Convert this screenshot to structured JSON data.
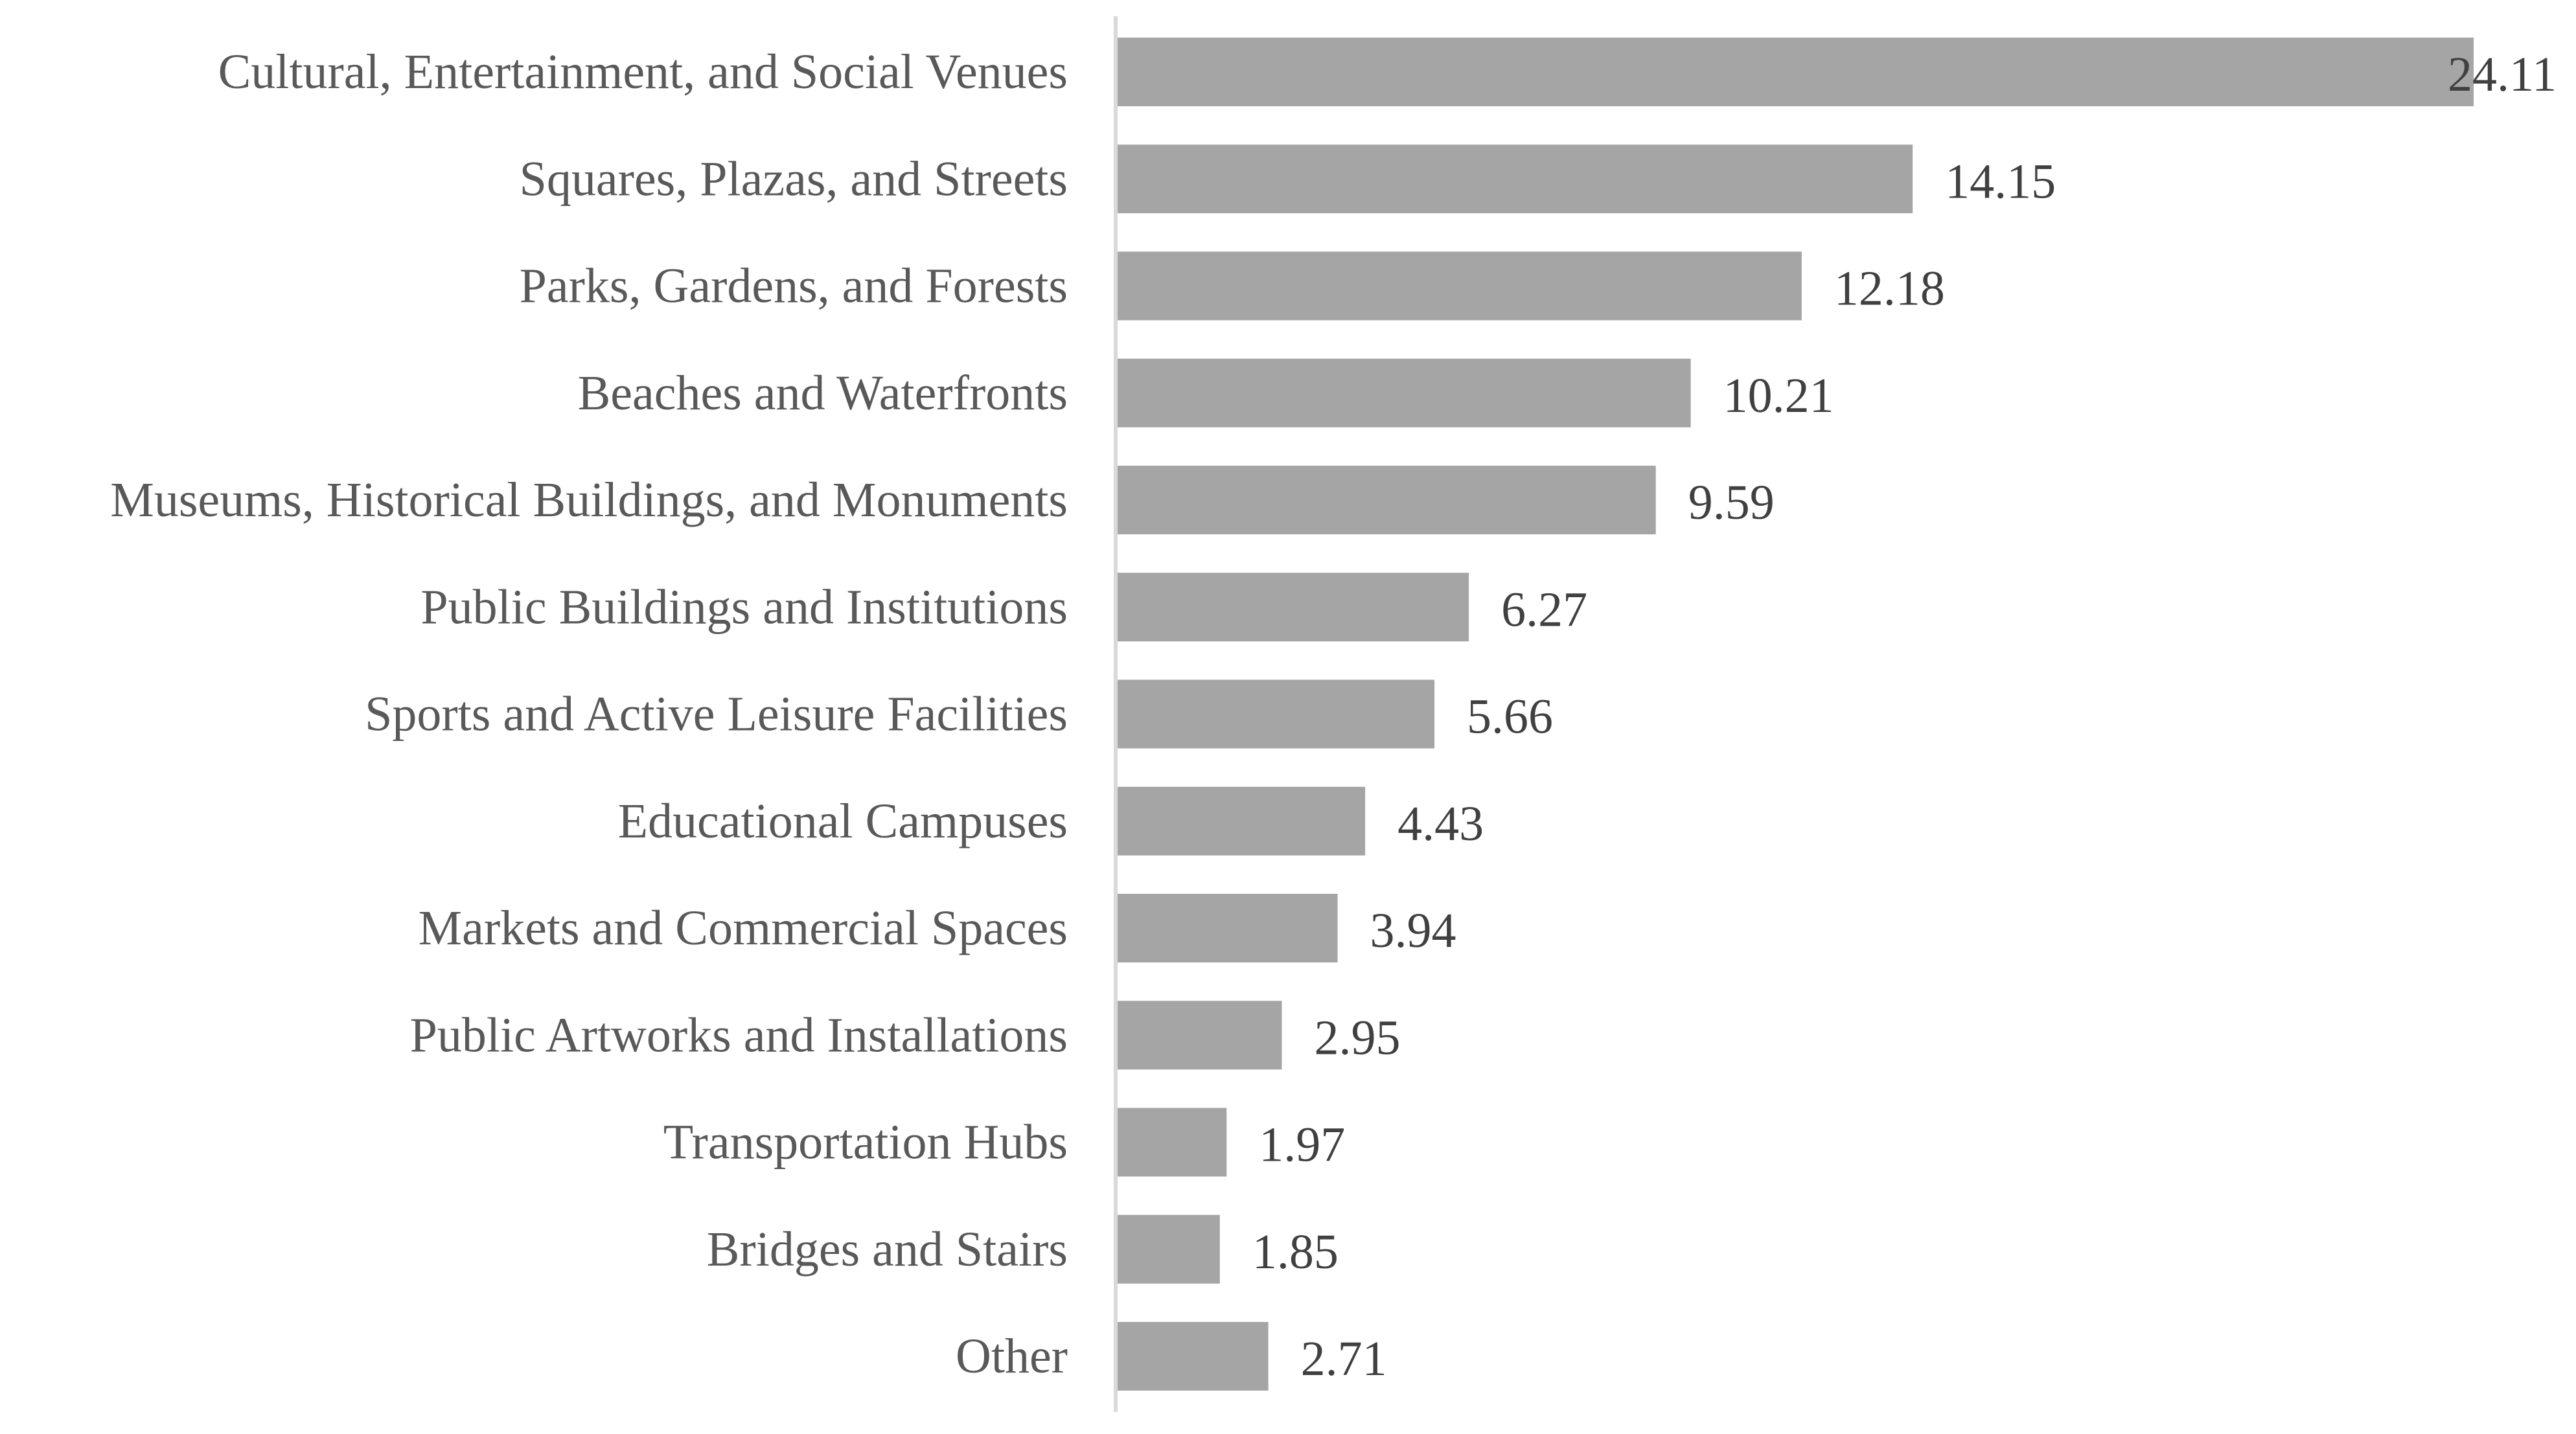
{
  "chart_data": {
    "type": "bar",
    "orientation": "horizontal",
    "title": "",
    "xlabel": "",
    "ylabel": "",
    "xlim": [
      0,
      24.11
    ],
    "grid": false,
    "legend": "none",
    "categories": [
      "Cultural, Entertainment, and Social Venues",
      "Squares, Plazas, and Streets",
      "Parks, Gardens, and Forests",
      "Beaches and Waterfronts",
      "Museums, Historical Buildings, and Monuments",
      "Public Buildings and Institutions",
      "Sports and Active Leisure Facilities",
      "Educational Campuses",
      "Markets and Commercial Spaces",
      "Public Artworks and Installations",
      "Transportation Hubs",
      "Bridges and Stairs",
      "Other"
    ],
    "values": [
      24.11,
      14.15,
      12.18,
      10.21,
      9.59,
      6.27,
      5.66,
      4.43,
      3.94,
      2.95,
      1.97,
      1.85,
      2.71
    ],
    "value_labels": [
      "24.11",
      "14.15",
      "12.18",
      "10.21",
      "9.59",
      "6.27",
      "5.66",
      "4.43",
      "3.94",
      "2.95",
      "1.97",
      "1.85",
      "2.71"
    ]
  },
  "colors": {
    "bar": "#a5a5a5",
    "axis": "#d9d9d9",
    "category_text": "#595959",
    "value_text": "#404040"
  }
}
